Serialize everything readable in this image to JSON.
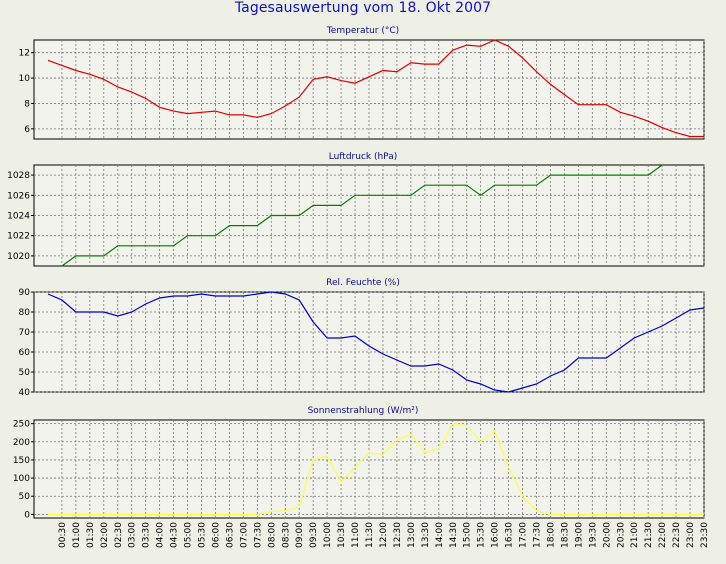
{
  "title": "Tagesauswertung vom 18. Okt 2007",
  "x_tick_labels": [
    "00:30",
    "01:00",
    "01:30",
    "02:00",
    "02:30",
    "03:00",
    "03:30",
    "04:00",
    "04:30",
    "05:00",
    "05:30",
    "06:00",
    "06:30",
    "07:00",
    "07:30",
    "08:00",
    "08:30",
    "09:00",
    "09:30",
    "10:00",
    "10:30",
    "11:00",
    "11:30",
    "12:00",
    "12:30",
    "13:00",
    "13:30",
    "14:00",
    "14:30",
    "15:00",
    "15:30",
    "16:00",
    "16:30",
    "17:00",
    "17:30",
    "18:00",
    "18:30",
    "19:00",
    "19:30",
    "20:00",
    "20:30",
    "21:00",
    "21:30",
    "22:00",
    "22:30",
    "23:00",
    "23:30"
  ],
  "colors": {
    "background": "#eef0e5",
    "plot_background": "#f2f3ec",
    "title": "#1010c0",
    "panel_title": "#0a0a8a",
    "temperature": "#e00000",
    "pressure": "#008000",
    "humidity": "#0000cc",
    "radiation": "#ffff40"
  },
  "chart_data": [
    {
      "type": "line",
      "title": "Temperatur (°C)",
      "grid": true,
      "ylim": [
        5.2,
        13
      ],
      "yticks": [
        6,
        8,
        10,
        12
      ],
      "x_start": "00:00",
      "x_end": "23:30",
      "x": [
        "00:00",
        "00:30",
        "01:00",
        "01:30",
        "02:00",
        "02:30",
        "03:00",
        "03:30",
        "04:00",
        "04:30",
        "05:00",
        "05:30",
        "06:00",
        "06:30",
        "07:00",
        "07:30",
        "08:00",
        "08:30",
        "09:00",
        "09:30",
        "10:00",
        "10:30",
        "11:00",
        "11:30",
        "12:00",
        "12:30",
        "13:00",
        "13:30",
        "14:00",
        "14:30",
        "15:00",
        "15:30",
        "16:00",
        "16:30",
        "17:00",
        "17:30",
        "18:00",
        "18:30",
        "19:00",
        "19:30",
        "20:00",
        "20:30",
        "21:00",
        "21:30",
        "22:00",
        "22:30",
        "23:00",
        "23:30"
      ],
      "values": [
        11.4,
        11.0,
        10.6,
        10.3,
        9.9,
        9.3,
        8.9,
        8.4,
        7.7,
        7.4,
        7.2,
        7.3,
        7.4,
        7.1,
        7.1,
        6.9,
        7.2,
        7.8,
        8.5,
        9.9,
        10.1,
        9.8,
        9.6,
        10.1,
        10.6,
        10.5,
        11.2,
        11.1,
        11.1,
        12.2,
        12.6,
        12.5,
        13.0,
        12.5,
        11.6,
        10.5,
        9.5,
        8.7,
        7.9,
        7.9,
        7.9,
        7.3,
        7.0,
        6.6,
        6.1,
        5.7,
        5.4,
        5.4
      ]
    },
    {
      "type": "line",
      "title": "Luftdruck (hPa)",
      "grid": true,
      "ylim": [
        1019,
        1029
      ],
      "yticks": [
        1020,
        1022,
        1024,
        1026,
        1028
      ],
      "x_start": "00:00",
      "x_end": "23:30",
      "x": [
        "00:30",
        "01:00",
        "02:00",
        "02:30",
        "04:30",
        "05:00",
        "06:00",
        "06:30",
        "07:30",
        "08:00",
        "09:00",
        "09:30",
        "10:30",
        "11:00",
        "13:00",
        "13:30",
        "15:00",
        "15:30",
        "16:00",
        "17:30",
        "18:00",
        "21:30",
        "22:00"
      ],
      "values": [
        1019,
        1020,
        1020,
        1021,
        1021,
        1022,
        1022,
        1023,
        1023,
        1024,
        1024,
        1025,
        1025,
        1026,
        1026,
        1027,
        1027,
        1026,
        1027,
        1027,
        1028,
        1028,
        1029
      ]
    },
    {
      "type": "line",
      "title": "Rel. Feuchte (%)",
      "grid": true,
      "ylim": [
        40,
        90
      ],
      "yticks": [
        40,
        50,
        60,
        70,
        80,
        90
      ],
      "x_start": "00:00",
      "x_end": "23:30",
      "x": [
        "00:00",
        "00:30",
        "01:00",
        "01:30",
        "02:00",
        "02:30",
        "03:00",
        "03:30",
        "04:00",
        "04:30",
        "05:00",
        "05:30",
        "06:00",
        "06:30",
        "07:00",
        "07:30",
        "08:00",
        "08:30",
        "09:00",
        "09:30",
        "10:00",
        "10:30",
        "11:00",
        "11:30",
        "12:00",
        "12:30",
        "13:00",
        "13:30",
        "14:00",
        "14:30",
        "15:00",
        "15:30",
        "16:00",
        "16:30",
        "17:00",
        "17:30",
        "18:00",
        "18:30",
        "19:00",
        "19:30",
        "20:00",
        "20:30",
        "21:00",
        "21:30",
        "22:00",
        "22:30",
        "23:00",
        "23:30"
      ],
      "values": [
        89,
        86,
        80,
        80,
        80,
        78,
        80,
        84,
        87,
        88,
        88,
        89,
        88,
        88,
        88,
        89,
        90,
        89,
        86,
        75,
        67,
        67,
        68,
        63,
        59,
        56,
        53,
        53,
        54,
        51,
        46,
        44,
        41,
        40,
        42,
        44,
        48,
        51,
        57,
        57,
        57,
        62,
        67,
        70,
        73,
        77,
        81,
        82
      ]
    },
    {
      "type": "line",
      "title": "Sonnenstrahlung (W/m²)",
      "grid": true,
      "ylim": [
        -10,
        260
      ],
      "yticks": [
        0,
        50,
        100,
        150,
        200,
        250
      ],
      "x_start": "00:00",
      "x_end": "23:30",
      "x": [
        "00:00",
        "00:30",
        "01:00",
        "01:30",
        "02:00",
        "02:30",
        "03:00",
        "03:30",
        "04:00",
        "04:30",
        "05:00",
        "05:30",
        "06:00",
        "06:30",
        "07:00",
        "07:30",
        "08:00",
        "08:30",
        "09:00",
        "09:30",
        "10:00",
        "10:30",
        "11:00",
        "11:30",
        "12:00",
        "12:30",
        "13:00",
        "13:30",
        "14:00",
        "14:30",
        "15:00",
        "15:30",
        "16:00",
        "16:30",
        "17:00",
        "17:30",
        "18:00",
        "18:30",
        "19:00",
        "19:30",
        "20:00",
        "20:30",
        "21:00",
        "21:30",
        "22:00",
        "22:30",
        "23:00",
        "23:30"
      ],
      "values": [
        0,
        0,
        0,
        0,
        0,
        0,
        0,
        0,
        0,
        0,
        0,
        0,
        0,
        0,
        0,
        0,
        8,
        10,
        20,
        150,
        160,
        90,
        130,
        170,
        165,
        205,
        220,
        170,
        180,
        250,
        245,
        200,
        230,
        130,
        50,
        10,
        0,
        0,
        0,
        0,
        0,
        0,
        0,
        0,
        0,
        0,
        0,
        0
      ]
    }
  ]
}
